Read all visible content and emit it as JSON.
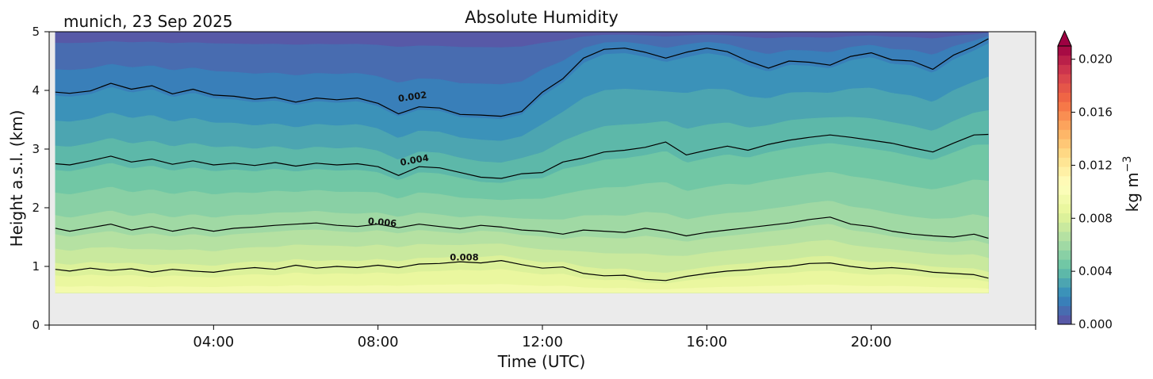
{
  "chart_data": {
    "type": "heatmap",
    "subtype": "filled-contour",
    "title": "Absolute Humidity",
    "subtitle": "munich, 23 Sep 2025",
    "xlabel": "Time (UTC)",
    "ylabel": "Height a.s.l. (km)",
    "xlim": [
      0,
      24
    ],
    "ylim": [
      0,
      5
    ],
    "data_xrange": [
      0.15,
      22.85
    ],
    "data_ybottom": 0.55,
    "x_ticks": [
      {
        "value": 4,
        "label": "04:00"
      },
      {
        "value": 8,
        "label": "08:00"
      },
      {
        "value": 12,
        "label": "12:00"
      },
      {
        "value": 16,
        "label": "16:00"
      },
      {
        "value": 20,
        "label": "20:00"
      }
    ],
    "y_ticks": [
      {
        "value": 0,
        "label": "0"
      },
      {
        "value": 1,
        "label": "1"
      },
      {
        "value": 2,
        "label": "2"
      },
      {
        "value": 3,
        "label": "3"
      },
      {
        "value": 4,
        "label": "4"
      },
      {
        "value": 5,
        "label": "5"
      }
    ],
    "colorbar": {
      "label": "kg m",
      "label_exponent": "−3",
      "range": [
        0,
        0.021
      ],
      "extend": "max",
      "ticks": [
        {
          "value": 0.0,
          "label": "0.000"
        },
        {
          "value": 0.004,
          "label": "0.004"
        },
        {
          "value": 0.008,
          "label": "0.008"
        },
        {
          "value": 0.012,
          "label": "0.012"
        },
        {
          "value": 0.016,
          "label": "0.016"
        },
        {
          "value": 0.02,
          "label": "0.020"
        }
      ],
      "colormap": "Spectral_r",
      "colormap_stops": [
        {
          "value": 0.0,
          "color": "#5e4fa2"
        },
        {
          "value": 0.0021,
          "color": "#3288bd"
        },
        {
          "value": 0.0042,
          "color": "#66c2a5"
        },
        {
          "value": 0.0063,
          "color": "#abdda4"
        },
        {
          "value": 0.0084,
          "color": "#e6f598"
        },
        {
          "value": 0.0105,
          "color": "#ffffbf"
        },
        {
          "value": 0.0126,
          "color": "#fee08b"
        },
        {
          "value": 0.0147,
          "color": "#fdae61"
        },
        {
          "value": 0.0168,
          "color": "#f46d43"
        },
        {
          "value": 0.0189,
          "color": "#d53e4f"
        },
        {
          "value": 0.021,
          "color": "#9e0142"
        }
      ],
      "extend_color": "#9e0142"
    },
    "contour_lines": [
      {
        "level": 0.002,
        "label": "0.002",
        "label_pos": {
          "x": 8.85,
          "y": 3.84,
          "angle": -8
        },
        "points": [
          [
            0.15,
            3.97
          ],
          [
            0.5,
            3.95
          ],
          [
            1.0,
            3.99
          ],
          [
            1.5,
            4.12
          ],
          [
            2.0,
            4.02
          ],
          [
            2.5,
            4.08
          ],
          [
            3.0,
            3.94
          ],
          [
            3.5,
            4.02
          ],
          [
            4.0,
            3.92
          ],
          [
            4.5,
            3.9
          ],
          [
            5.0,
            3.85
          ],
          [
            5.5,
            3.88
          ],
          [
            6.0,
            3.8
          ],
          [
            6.5,
            3.87
          ],
          [
            7.0,
            3.84
          ],
          [
            7.5,
            3.87
          ],
          [
            8.0,
            3.78
          ],
          [
            8.5,
            3.6
          ],
          [
            9.0,
            3.72
          ],
          [
            9.5,
            3.7
          ],
          [
            10.0,
            3.59
          ],
          [
            10.5,
            3.58
          ],
          [
            11.0,
            3.56
          ],
          [
            11.5,
            3.64
          ],
          [
            12.0,
            3.97
          ],
          [
            12.5,
            4.2
          ],
          [
            13.0,
            4.55
          ],
          [
            13.5,
            4.7
          ],
          [
            14.0,
            4.72
          ],
          [
            14.5,
            4.65
          ],
          [
            15.0,
            4.55
          ],
          [
            15.5,
            4.65
          ],
          [
            16.0,
            4.72
          ],
          [
            16.5,
            4.66
          ],
          [
            17.0,
            4.5
          ],
          [
            17.5,
            4.38
          ],
          [
            18.0,
            4.5
          ],
          [
            18.5,
            4.48
          ],
          [
            19.0,
            4.43
          ],
          [
            19.5,
            4.58
          ],
          [
            20.0,
            4.64
          ],
          [
            20.5,
            4.52
          ],
          [
            21.0,
            4.5
          ],
          [
            21.5,
            4.36
          ],
          [
            22.0,
            4.6
          ],
          [
            22.5,
            4.75
          ],
          [
            22.85,
            4.88
          ]
        ]
      },
      {
        "level": 0.004,
        "label": "0.004",
        "label_pos": {
          "x": 8.9,
          "y": 2.76,
          "angle": -10
        },
        "points": [
          [
            0.15,
            2.75
          ],
          [
            0.5,
            2.73
          ],
          [
            1.0,
            2.8
          ],
          [
            1.5,
            2.88
          ],
          [
            2.0,
            2.78
          ],
          [
            2.5,
            2.83
          ],
          [
            3.0,
            2.74
          ],
          [
            3.5,
            2.8
          ],
          [
            4.0,
            2.73
          ],
          [
            4.5,
            2.76
          ],
          [
            5.0,
            2.72
          ],
          [
            5.5,
            2.77
          ],
          [
            6.0,
            2.71
          ],
          [
            6.5,
            2.76
          ],
          [
            7.0,
            2.73
          ],
          [
            7.5,
            2.75
          ],
          [
            8.0,
            2.7
          ],
          [
            8.5,
            2.55
          ],
          [
            9.0,
            2.7
          ],
          [
            9.5,
            2.68
          ],
          [
            10.0,
            2.6
          ],
          [
            10.5,
            2.52
          ],
          [
            11.0,
            2.5
          ],
          [
            11.5,
            2.58
          ],
          [
            12.0,
            2.6
          ],
          [
            12.5,
            2.78
          ],
          [
            13.0,
            2.85
          ],
          [
            13.5,
            2.95
          ],
          [
            14.0,
            2.98
          ],
          [
            14.5,
            3.03
          ],
          [
            15.0,
            3.12
          ],
          [
            15.5,
            2.9
          ],
          [
            16.0,
            2.98
          ],
          [
            16.5,
            3.05
          ],
          [
            17.0,
            2.98
          ],
          [
            17.5,
            3.08
          ],
          [
            18.0,
            3.15
          ],
          [
            18.5,
            3.2
          ],
          [
            19.0,
            3.24
          ],
          [
            19.5,
            3.2
          ],
          [
            20.0,
            3.15
          ],
          [
            20.5,
            3.1
          ],
          [
            21.0,
            3.02
          ],
          [
            21.5,
            2.95
          ],
          [
            22.0,
            3.1
          ],
          [
            22.5,
            3.24
          ],
          [
            22.85,
            3.25
          ]
        ]
      },
      {
        "level": 0.006,
        "label": "0.006",
        "label_pos": {
          "x": 8.1,
          "y": 1.7,
          "angle": 5
        },
        "points": [
          [
            0.15,
            1.65
          ],
          [
            0.5,
            1.6
          ],
          [
            1.0,
            1.66
          ],
          [
            1.5,
            1.72
          ],
          [
            2.0,
            1.62
          ],
          [
            2.5,
            1.68
          ],
          [
            3.0,
            1.6
          ],
          [
            3.5,
            1.66
          ],
          [
            4.0,
            1.6
          ],
          [
            4.5,
            1.65
          ],
          [
            5.0,
            1.67
          ],
          [
            5.5,
            1.7
          ],
          [
            6.0,
            1.72
          ],
          [
            6.5,
            1.74
          ],
          [
            7.0,
            1.7
          ],
          [
            7.5,
            1.68
          ],
          [
            8.0,
            1.72
          ],
          [
            8.5,
            1.66
          ],
          [
            9.0,
            1.72
          ],
          [
            9.5,
            1.68
          ],
          [
            10.0,
            1.64
          ],
          [
            10.5,
            1.7
          ],
          [
            11.0,
            1.67
          ],
          [
            11.5,
            1.62
          ],
          [
            12.0,
            1.6
          ],
          [
            12.5,
            1.55
          ],
          [
            13.0,
            1.62
          ],
          [
            13.5,
            1.6
          ],
          [
            14.0,
            1.58
          ],
          [
            14.5,
            1.65
          ],
          [
            15.0,
            1.6
          ],
          [
            15.5,
            1.52
          ],
          [
            16.0,
            1.58
          ],
          [
            16.5,
            1.62
          ],
          [
            17.0,
            1.66
          ],
          [
            17.5,
            1.7
          ],
          [
            18.0,
            1.74
          ],
          [
            18.5,
            1.8
          ],
          [
            19.0,
            1.84
          ],
          [
            19.5,
            1.72
          ],
          [
            20.0,
            1.68
          ],
          [
            20.5,
            1.6
          ],
          [
            21.0,
            1.55
          ],
          [
            21.5,
            1.52
          ],
          [
            22.0,
            1.5
          ],
          [
            22.5,
            1.55
          ],
          [
            22.85,
            1.48
          ]
        ]
      },
      {
        "level": 0.008,
        "label": "0.008",
        "label_pos": {
          "x": 10.1,
          "y": 1.1,
          "angle": 0
        },
        "points": [
          [
            0.15,
            0.95
          ],
          [
            0.5,
            0.92
          ],
          [
            1.0,
            0.97
          ],
          [
            1.5,
            0.93
          ],
          [
            2.0,
            0.96
          ],
          [
            2.5,
            0.9
          ],
          [
            3.0,
            0.95
          ],
          [
            3.5,
            0.92
          ],
          [
            4.0,
            0.9
          ],
          [
            4.5,
            0.95
          ],
          [
            5.0,
            0.98
          ],
          [
            5.5,
            0.95
          ],
          [
            6.0,
            1.02
          ],
          [
            6.5,
            0.97
          ],
          [
            7.0,
            1.0
          ],
          [
            7.5,
            0.98
          ],
          [
            8.0,
            1.02
          ],
          [
            8.5,
            0.98
          ],
          [
            9.0,
            1.04
          ],
          [
            9.5,
            1.05
          ],
          [
            10.0,
            1.08
          ],
          [
            10.5,
            1.06
          ],
          [
            11.0,
            1.1
          ],
          [
            11.5,
            1.03
          ],
          [
            12.0,
            0.97
          ],
          [
            12.5,
            0.99
          ],
          [
            13.0,
            0.88
          ],
          [
            13.5,
            0.84
          ],
          [
            14.0,
            0.85
          ],
          [
            14.5,
            0.78
          ],
          [
            15.0,
            0.76
          ],
          [
            15.5,
            0.83
          ],
          [
            16.0,
            0.88
          ],
          [
            16.5,
            0.92
          ],
          [
            17.0,
            0.94
          ],
          [
            17.5,
            0.98
          ],
          [
            18.0,
            1.0
          ],
          [
            18.5,
            1.05
          ],
          [
            19.0,
            1.06
          ],
          [
            19.5,
            1.0
          ],
          [
            20.0,
            0.96
          ],
          [
            20.5,
            0.98
          ],
          [
            21.0,
            0.95
          ],
          [
            21.5,
            0.9
          ],
          [
            22.0,
            0.88
          ],
          [
            22.5,
            0.86
          ],
          [
            22.85,
            0.8
          ]
        ]
      }
    ],
    "field_model": {
      "description": "Filled-contour approximation of the plotted humidity field; isolines above pass through the stated levels.",
      "levels": [
        0.0,
        0.002,
        0.004,
        0.006,
        0.008,
        0.0095
      ],
      "cap_value": 0.0095,
      "cap_height": 0.55,
      "top_value": 0.0004
    },
    "filled_levels_step": 0.0007,
    "background_color": "#ebebeb"
  }
}
